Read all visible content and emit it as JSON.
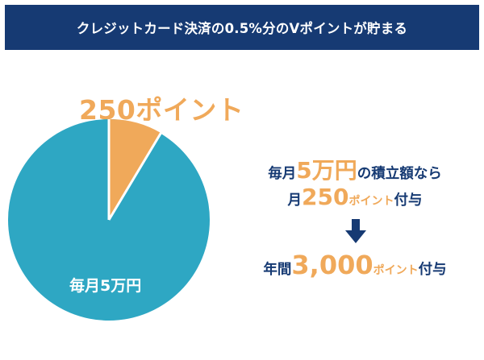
{
  "banner": {
    "title": "クレジットカード決済の0.5%分のVポイントが貯まる"
  },
  "pie": {
    "points_label": "250ポイント",
    "monthly_label": "毎月5万円",
    "colors": {
      "main": "#2ea7c3",
      "slice": "#f0a95a"
    }
  },
  "summary": {
    "line1": {
      "pre": "毎月",
      "amount": "5万円",
      "post": "の積立額なら"
    },
    "line2": {
      "pre": "月",
      "amount": "250",
      "unit": "ポイント",
      "post": "付与"
    },
    "line3": {
      "pre": "年間",
      "amount": "3,000",
      "unit": "ポイント",
      "post": "付与"
    }
  },
  "colors": {
    "navy": "#163a73",
    "orange": "#f0a95a",
    "blue": "#2ea7c3",
    "white": "#ffffff"
  },
  "icons": {
    "arrow": "arrow-down-icon"
  }
}
